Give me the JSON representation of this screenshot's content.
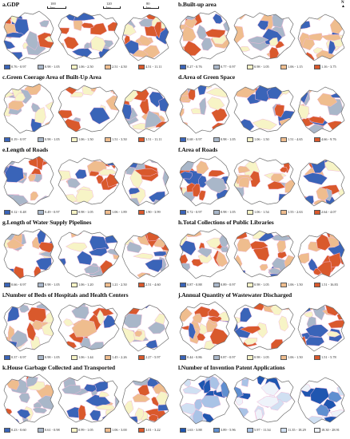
{
  "scale_labels": [
    "100 km",
    "120 km",
    "80 km"
  ],
  "north_label": "N",
  "panels": [
    {
      "title": "a.GDP",
      "palette": "div",
      "legend": [
        "0.76 - 0.97",
        "0.98 - 1.05",
        "1.06 - 2.50",
        "2.51 - 4.50",
        "4.51 - 11.11"
      ]
    },
    {
      "title": "b.Built-up area",
      "palette": "div",
      "legend": [
        "0.27 - 0.76",
        "0.77 - 0.97",
        "0.98 - 1.05",
        "1.06 - 1.15",
        "1.16 - 3.75"
      ]
    },
    {
      "title": "c.Green Coerage Area of Built-Up Area",
      "palette": "div",
      "legend": [
        "0.19 - 0.97",
        "0.98 - 1.05",
        "1.06 - 1.50",
        "1.51 - 3.50",
        "3.51 - 11.11"
      ]
    },
    {
      "title": "d.Area of Green Space",
      "palette": "div",
      "legend": [
        "0.68 - 0.97",
        "0.98 - 1.05",
        "1.06 - 1.50",
        "1.51 - 4.65",
        "4.66 - 9.76"
      ]
    },
    {
      "title": "e.Length of Roads",
      "palette": "div",
      "legend": [
        "0.12 - 0.48",
        "0.49 - 0.97",
        "0.98 - 1.05",
        "1.06 - 1.89",
        "1.90 - 3.99"
      ]
    },
    {
      "title": "f.Area of Roads",
      "palette": "div",
      "legend": [
        "0.72 - 0.97",
        "0.98 - 1.05",
        "1.06 - 1.54",
        "1.55 - 2.63",
        "2.64 - 4.07"
      ]
    },
    {
      "title": "g.Length of Water Supply Pipelines",
      "palette": "div6",
      "legend": [
        "0.66 - 0.97",
        "0.98 - 1.05",
        "1.06 - 1.20",
        "1.21 - 2.50",
        "2.51 - 4.60"
      ]
    },
    {
      "title": "h.Total Collections of Public Libraries",
      "palette": "div",
      "legend": [
        "0.87 - 0.88",
        "0.89 - 0.97",
        "0.98 - 1.05",
        "1.06 - 1.50",
        "1.51 - 16.83"
      ]
    },
    {
      "title": "i.Number of Beds of Hospitals and Health Centers",
      "palette": "div6",
      "legend": [
        "0.37 - 0.97",
        "0.98 - 1.05",
        "1.06 - 1.44",
        "1.45 - 2.26",
        "2.27 - 5.97"
      ]
    },
    {
      "title": "j.Annual Quantity of Wastewater Discharged",
      "palette": "div",
      "legend": [
        "0.44 - 0.86",
        "0.87 - 0.97",
        "0.98 - 1.05",
        "1.06 - 1.50",
        "1.51 - 5.78"
      ]
    },
    {
      "title": "k.House Garbage Collected and Transported",
      "palette": "div",
      "legend": [
        "0.23 - 0.60",
        "0.61 - 0.98",
        "0.99 - 1.05",
        "1.06 - 3.00",
        "3.01 - 3.22"
      ]
    },
    {
      "title": "l.Number of Invention Patent Applications",
      "palette": "blue",
      "legend": [
        "1.63 - 3.88",
        "3.89 - 5.96",
        "5.97 - 11.34",
        "11.35 - 18.29",
        "18.30 - 28.91"
      ]
    }
  ],
  "colors": {
    "div": [
      "#3a64b8",
      "#a9b7c9",
      "#f7f4c6",
      "#efbd8e",
      "#d9592c"
    ],
    "div6": [
      "#3a64b8",
      "#a9b7c9",
      "#f7f4c6",
      "#efbd8e",
      "#d9592c"
    ],
    "blue": [
      "#1f56b0",
      "#5f8fd0",
      "#a9c3e6",
      "#d0e0f2",
      "#eef3fa"
    ],
    "outline": "#6f6f6f",
    "border": "#f2b8d8"
  }
}
